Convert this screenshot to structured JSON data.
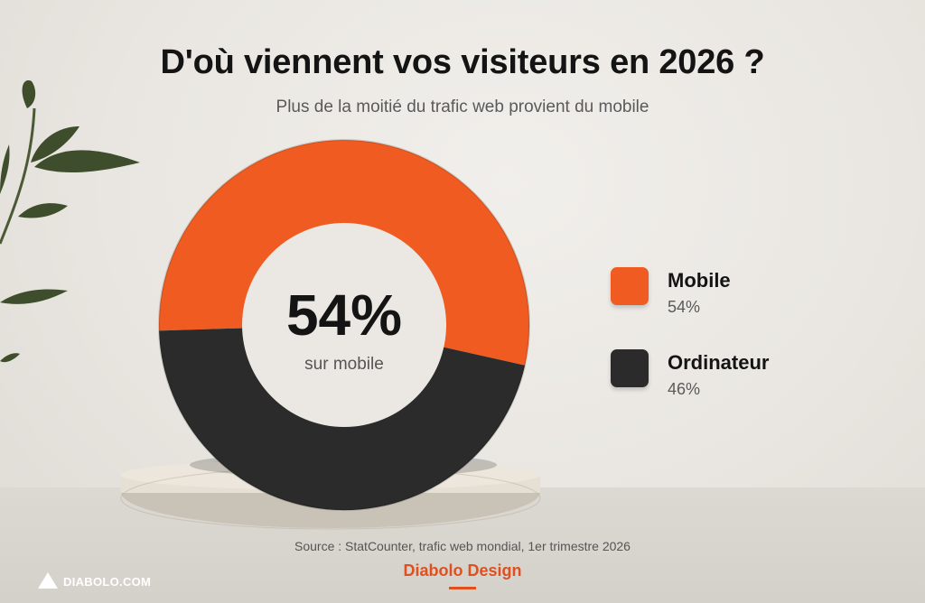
{
  "title": "D'où viennent vos visiteurs en 2026 ?",
  "subtitle": "Plus de la moitié du trafic web provient du mobile",
  "center": {
    "value": "54%",
    "label": "sur mobile"
  },
  "chart_data": {
    "type": "pie",
    "title": "D'où viennent vos visiteurs en 2026 ?",
    "categories": [
      "Mobile",
      "Ordinateur"
    ],
    "values": [
      54,
      46
    ],
    "value_labels": [
      "54%",
      "46%"
    ],
    "colors": [
      "#ef5b20",
      "#2b2b2b"
    ],
    "donut": true,
    "legend_position": "right"
  },
  "source": "Source : StatCounter, trafic web mondial, 1er trimestre 2026",
  "brand": "Diabolo Design",
  "logo": {
    "text": "DIABOLO.COM",
    "icon": "triangle-logo-icon"
  }
}
